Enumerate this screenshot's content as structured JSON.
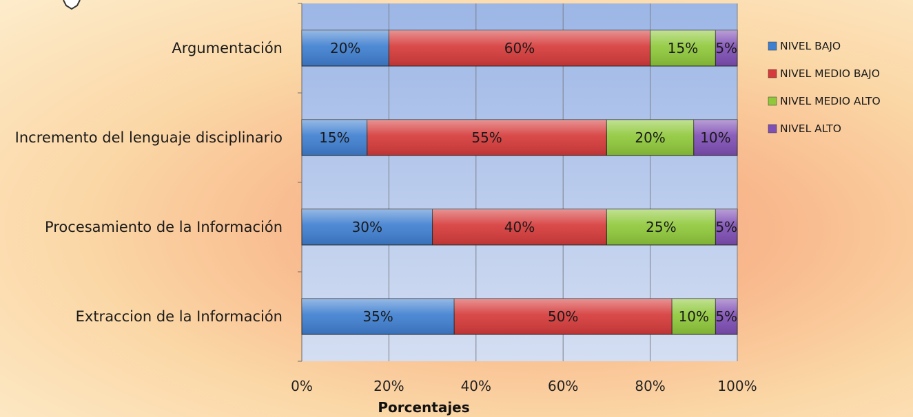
{
  "chart_data": {
    "type": "bar",
    "orientation": "horizontal",
    "stacked": "percent",
    "title": "",
    "xlabel": "Porcentajes",
    "ylabel": "",
    "xlim": [
      0,
      100
    ],
    "x_ticks": [
      "0%",
      "20%",
      "40%",
      "60%",
      "80%",
      "100%"
    ],
    "grid": true,
    "legend_position": "right",
    "categories": [
      "Argumentación",
      "Incremento del lenguaje disciplinario",
      "Procesamiento de la Información",
      "Extraccion de la Información"
    ],
    "series": [
      {
        "name": "NIVEL BAJO",
        "color": "#3f7fd0",
        "values": [
          20,
          15,
          30,
          35
        ]
      },
      {
        "name": "NIVEL MEDIO BAJO",
        "color": "#d63a3a",
        "values": [
          60,
          55,
          40,
          50
        ]
      },
      {
        "name": "NIVEL MEDIO ALTO",
        "color": "#8fc83a",
        "values": [
          15,
          20,
          25,
          10
        ]
      },
      {
        "name": "NIVEL ALTO",
        "color": "#7f4fb5",
        "values": [
          5,
          10,
          5,
          5
        ]
      }
    ],
    "data_labels": [
      [
        "20%",
        "60%",
        "15%",
        "5%"
      ],
      [
        "15%",
        "55%",
        "20%",
        "10%"
      ],
      [
        "30%",
        "40%",
        "25%",
        "5%"
      ],
      [
        "35%",
        "50%",
        "10%",
        "5%"
      ]
    ]
  }
}
